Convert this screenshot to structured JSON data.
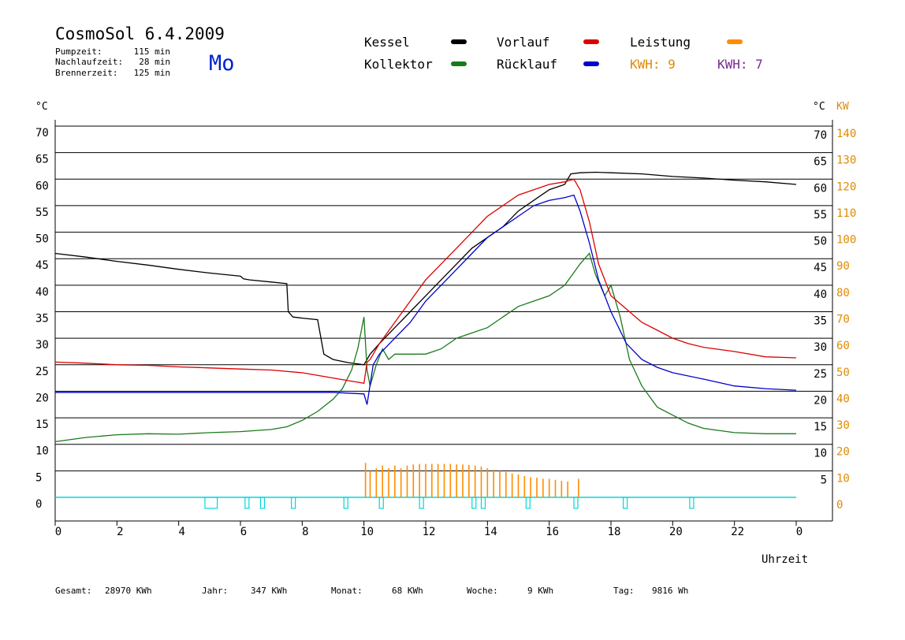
{
  "header": {
    "title": "CosmoSol 6.4.2009",
    "day": "Mo",
    "stats": [
      {
        "label": "Pumpzeit:",
        "value": "115 min"
      },
      {
        "label": "Nachlaufzeit:",
        "value": "28 min"
      },
      {
        "label": "Brennerzeit:",
        "value": "125 min"
      }
    ]
  },
  "legend": {
    "kessel": "Kessel",
    "kollektor": "Kollektor",
    "vorlauf": "Vorlauf",
    "ruecklauf": "Rücklauf",
    "leistung": "Leistung",
    "kwh1": "KWH: 9",
    "kwh2": "KWH: 7"
  },
  "footer": {
    "gesamt_label": "Gesamt:",
    "gesamt_value": "28970 KWh",
    "jahr_label": "Jahr:",
    "jahr_value": "347 KWh",
    "monat_label": "Monat:",
    "monat_value": "68 KWh",
    "woche_label": "Woche:",
    "woche_value": "9 KWh",
    "tag_label": "Tag:",
    "tag_value": "9816 Wh"
  },
  "colors": {
    "kessel": "#000000",
    "kollektor": "#1a7a1a",
    "vorlauf": "#dd0000",
    "ruecklauf": "#0000cc",
    "leistung": "#ff8c00",
    "kwh_orange": "#e08a00",
    "kwh_purple": "#7b2a8e",
    "pump": "#00d8d8",
    "day": "#0022cc"
  },
  "chart_data": {
    "type": "line",
    "xlabel": "Uhrzeit",
    "ylabel_left": "°C",
    "ylabel_right_temp": "°C",
    "ylabel_right_power": "KW",
    "xlim": [
      0,
      24
    ],
    "ylim": [
      0,
      70
    ],
    "x_ticks": [
      "0",
      "2",
      "4",
      "6",
      "8",
      "10",
      "12",
      "14",
      "16",
      "18",
      "20",
      "22",
      "0"
    ],
    "x_tick_values": [
      0,
      2,
      4,
      6,
      8,
      10,
      12,
      14,
      16,
      18,
      20,
      22,
      24
    ],
    "y_ticks_left": [
      "0",
      "5",
      "10",
      "15",
      "20",
      "25",
      "30",
      "35",
      "40",
      "45",
      "50",
      "55",
      "60",
      "65",
      "70"
    ],
    "y_ticks_right_temp": [
      "5",
      "10",
      "15",
      "20",
      "25",
      "30",
      "35",
      "40",
      "45",
      "50",
      "55",
      "60",
      "65",
      "70"
    ],
    "y_ticks_right_power": [
      "0",
      "10",
      "20",
      "30",
      "40",
      "50",
      "60",
      "70",
      "80",
      "90",
      "100",
      "110",
      "120",
      "130",
      "140"
    ],
    "series": [
      {
        "name": "Kessel",
        "x": [
          0,
          1,
          2,
          3,
          4,
          5,
          6,
          6.1,
          6.3,
          7,
          7.5,
          7.55,
          7.7,
          8,
          8.5,
          8.7,
          9,
          9.5,
          10,
          10.2,
          10.5,
          11,
          11.5,
          12,
          12.5,
          13,
          13.5,
          14,
          14.5,
          15,
          15.5,
          16,
          16.5,
          16.7,
          17,
          17.5,
          18,
          19,
          20,
          21,
          22,
          23,
          24
        ],
        "y": [
          46,
          45.3,
          44.5,
          43.8,
          43,
          42.3,
          41.7,
          41.2,
          41,
          40.6,
          40.3,
          35,
          34,
          33.8,
          33.5,
          27,
          26,
          25.4,
          25,
          27,
          29,
          32,
          35,
          38,
          41,
          44,
          47,
          49,
          51,
          54,
          56,
          58,
          59,
          61,
          61.2,
          61.3,
          61.2,
          61,
          60.5,
          60.2,
          59.8,
          59.5,
          59
        ]
      },
      {
        "name": "Kollektor",
        "x": [
          0,
          1,
          2,
          3,
          4,
          5,
          6,
          7,
          7.5,
          8,
          8.5,
          9,
          9.3,
          9.6,
          9.8,
          10,
          10.1,
          10.2,
          10.4,
          10.6,
          10.8,
          11,
          11.5,
          12,
          12.5,
          13,
          13.5,
          14,
          14.5,
          15,
          15.5,
          16,
          16.5,
          17,
          17.3,
          17.5,
          17.8,
          18,
          18.3,
          18.6,
          19,
          19.5,
          20,
          20.5,
          21,
          22,
          23,
          24
        ],
        "y": [
          10.5,
          11.3,
          11.8,
          12,
          11.9,
          12.2,
          12.4,
          12.8,
          13.3,
          14.5,
          16.2,
          18.5,
          20.5,
          24,
          28,
          34,
          24,
          21,
          25,
          28,
          26,
          27,
          27,
          27,
          28,
          30,
          31,
          32,
          34,
          36,
          37,
          38,
          40,
          44,
          46,
          42,
          38,
          40,
          34,
          26,
          21,
          17,
          15.5,
          14,
          13,
          12.2,
          12,
          12
        ]
      },
      {
        "name": "Vorlauf",
        "x": [
          0,
          1,
          2,
          3,
          4,
          5,
          6,
          7,
          8,
          9,
          9.5,
          10,
          10.1,
          10.2,
          10.5,
          11,
          11.5,
          12,
          12.5,
          13,
          13.5,
          14,
          14.5,
          15,
          15.5,
          16,
          16.5,
          16.8,
          17,
          17.3,
          17.6,
          18,
          18.5,
          19,
          19.5,
          20,
          20.5,
          21,
          22,
          23,
          24
        ],
        "y": [
          25.5,
          25.3,
          25,
          24.9,
          24.6,
          24.4,
          24.2,
          24,
          23.5,
          22.5,
          22,
          21.5,
          25.5,
          26,
          29,
          33,
          37,
          41,
          44,
          47,
          50,
          53,
          55,
          57,
          58,
          59,
          59.5,
          60,
          58,
          52,
          44,
          38,
          35.5,
          33,
          31.5,
          30,
          29,
          28.3,
          27.5,
          26.5,
          26.3
        ]
      },
      {
        "name": "Rücklauf",
        "x": [
          0,
          2,
          4,
          6,
          8,
          9,
          10,
          10.1,
          10.3,
          10.5,
          11,
          11.5,
          12,
          12.5,
          13,
          13.5,
          14,
          14.5,
          15,
          15.5,
          16,
          16.5,
          16.8,
          17,
          17.3,
          17.6,
          18,
          18.5,
          19,
          19.5,
          20,
          21,
          22,
          23,
          24
        ],
        "y": [
          19.8,
          19.8,
          19.8,
          19.8,
          19.8,
          19.8,
          19.5,
          17.5,
          25,
          27,
          30,
          33,
          37,
          40,
          43,
          46,
          49,
          51,
          53,
          55,
          56,
          56.5,
          57,
          54,
          48,
          41,
          35,
          29,
          26,
          24.5,
          23.5,
          22.3,
          21,
          20.5,
          20.2
        ]
      },
      {
        "name": "Leistung",
        "x": [
          10.05,
          10.2,
          10.4,
          10.6,
          10.8,
          11,
          11.2,
          11.4,
          11.6,
          11.8,
          12,
          12.2,
          12.4,
          12.6,
          12.8,
          13,
          13.2,
          13.4,
          13.6,
          13.8,
          14,
          14.2,
          14.4,
          14.6,
          14.8,
          15,
          15.2,
          15.4,
          15.6,
          15.8,
          16,
          16.2,
          16.4,
          16.6,
          16.95
        ],
        "y": [
          6.5,
          5,
          5.5,
          6,
          5.5,
          6,
          5.5,
          6,
          6.2,
          6.3,
          6.3,
          6.3,
          6.3,
          6.3,
          6.3,
          6.2,
          6.2,
          6.1,
          6,
          5.8,
          5.5,
          5.2,
          5,
          4.8,
          4.5,
          4.3,
          4,
          3.8,
          3.7,
          3.5,
          3.5,
          3.3,
          3.1,
          3,
          3.5
        ]
      }
    ],
    "pump_pulses": [
      [
        4.85,
        5.25
      ],
      [
        6.15,
        6.25
      ],
      [
        6.65,
        6.75
      ],
      [
        7.65,
        7.75
      ],
      [
        9.35,
        9.45
      ],
      [
        10.5,
        10.6
      ],
      [
        11.8,
        11.9
      ],
      [
        13.5,
        13.6
      ],
      [
        13.8,
        13.9
      ],
      [
        15.25,
        15.35
      ],
      [
        16.8,
        16.9
      ],
      [
        18.4,
        18.5
      ],
      [
        20.55,
        20.65
      ]
    ],
    "legend_position": "top"
  }
}
